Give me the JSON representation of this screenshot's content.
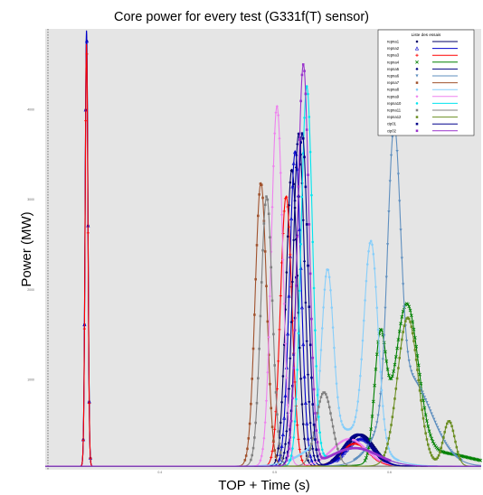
{
  "chart_data": {
    "type": "line",
    "title": "Core power for every test (G331f(T) sensor)",
    "xlabel": "TOP + Time (s)",
    "ylabel": "Power (MW)",
    "xlim": [
      0,
      3.8
    ],
    "ylim": [
      0,
      4900
    ],
    "x_ticks": [
      1.0,
      2.0,
      3.0
    ],
    "x_tick_labels": [
      "0.4",
      "0.5",
      "0.6"
    ],
    "y_ticks": [
      1000,
      2000,
      3000,
      4000
    ],
    "y_tick_labels": [
      "1000",
      "2000",
      "3000",
      "4000"
    ],
    "grid": false,
    "background": "#e5e5e5",
    "legend": {
      "title": "Liste des essais",
      "placement": "top-right",
      "entries": [
        "repna1",
        "repna2",
        "repna3",
        "repna4",
        "repna5",
        "repna6",
        "repna7",
        "repna8",
        "repna9",
        "repna10",
        "repna11",
        "repna12",
        "cip01",
        "cip02"
      ]
    },
    "series": [
      {
        "name": "repna1",
        "color": "#000066",
        "marker": "o",
        "peaks": [
          [
            0.36,
            4850,
            0.012
          ],
          [
            2.15,
            3300,
            0.05
          ],
          [
            2.75,
            350,
            0.12
          ]
        ]
      },
      {
        "name": "repna2",
        "color": "#0000cc",
        "marker": "^",
        "peaks": [
          [
            0.36,
            4850,
            0.012
          ],
          [
            2.18,
            3500,
            0.05
          ],
          [
            2.75,
            300,
            0.12
          ]
        ]
      },
      {
        "name": "repna3",
        "color": "#ff0000",
        "marker": "+",
        "peaks": [
          [
            0.36,
            4700,
            0.012
          ],
          [
            2.1,
            3000,
            0.05
          ],
          [
            2.7,
            250,
            0.12
          ]
        ]
      },
      {
        "name": "repna4",
        "color": "#008000",
        "marker": "x",
        "peaks": [
          [
            2.92,
            1350,
            0.05
          ],
          [
            3.15,
            1700,
            0.1
          ],
          [
            3.4,
            150,
            0.3
          ]
        ]
      },
      {
        "name": "repna5",
        "color": "#000080",
        "marker": "D",
        "peaks": [
          [
            2.21,
            3700,
            0.05
          ],
          [
            2.72,
            350,
            0.12
          ]
        ]
      },
      {
        "name": "repna6",
        "color": "#5f8fbf",
        "marker": "v",
        "peaks": [
          [
            3.04,
            2950,
            0.055
          ],
          [
            3.16,
            1000,
            0.2
          ]
        ]
      },
      {
        "name": "repna7",
        "color": "#a0522d",
        "marker": "s",
        "peaks": [
          [
            1.88,
            3150,
            0.05
          ]
        ]
      },
      {
        "name": "repna8",
        "color": "#87cefa",
        "marker": "o",
        "peaks": [
          [
            2.46,
            1850,
            0.05
          ],
          [
            2.84,
            2250,
            0.06
          ],
          [
            2.6,
            400,
            0.25
          ]
        ]
      },
      {
        "name": "repna9",
        "color": "#ee82ee",
        "marker": "D",
        "peaks": [
          [
            2.02,
            4000,
            0.05
          ],
          [
            2.65,
            300,
            0.15
          ]
        ]
      },
      {
        "name": "repna10",
        "color": "#00e5ee",
        "marker": "o",
        "peaks": [
          [
            2.28,
            4200,
            0.05
          ],
          [
            2.7,
            200,
            0.2
          ]
        ]
      },
      {
        "name": "repna11",
        "color": "#808080",
        "marker": "s",
        "peaks": [
          [
            1.93,
            3000,
            0.05
          ],
          [
            2.43,
            820,
            0.07
          ]
        ]
      },
      {
        "name": "repna12",
        "color": "#6b8e23",
        "marker": "s",
        "peaks": [
          [
            3.16,
            1650,
            0.09
          ],
          [
            3.52,
            500,
            0.05
          ]
        ]
      },
      {
        "name": "cip01",
        "color": "#00008b",
        "marker": "s",
        "peaks": [
          [
            2.24,
            3700,
            0.05
          ],
          [
            2.73,
            350,
            0.12
          ]
        ]
      },
      {
        "name": "cip02",
        "color": "#9932cc",
        "marker": "s",
        "peaks": [
          [
            2.25,
            4450,
            0.05
          ],
          [
            2.7,
            200,
            0.2
          ]
        ]
      }
    ]
  }
}
